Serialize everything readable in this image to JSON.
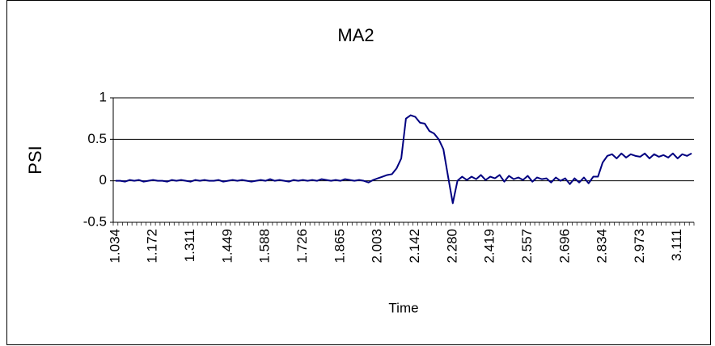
{
  "chart_data": {
    "type": "line",
    "title": "MA2",
    "x_label": "Time",
    "y_label": "PSI",
    "categories": [
      "1.034",
      null,
      null,
      null,
      null,
      null,
      null,
      null,
      "1.172",
      null,
      null,
      null,
      null,
      null,
      null,
      null,
      "1.311",
      null,
      null,
      null,
      null,
      null,
      null,
      null,
      "1.449",
      null,
      null,
      null,
      null,
      null,
      null,
      null,
      "1.588",
      null,
      null,
      null,
      null,
      null,
      null,
      null,
      "1.726",
      null,
      null,
      null,
      null,
      null,
      null,
      null,
      "1.865",
      null,
      null,
      null,
      null,
      null,
      null,
      null,
      "2.003",
      null,
      null,
      null,
      null,
      null,
      null,
      null,
      "2.142",
      null,
      null,
      null,
      null,
      null,
      null,
      null,
      "2.280",
      null,
      null,
      null,
      null,
      null,
      null,
      null,
      "2.419",
      null,
      null,
      null,
      null,
      null,
      null,
      null,
      "2.557",
      null,
      null,
      null,
      null,
      null,
      null,
      null,
      "2.696",
      null,
      null,
      null,
      null,
      null,
      null,
      null,
      "2.834",
      null,
      null,
      null,
      null,
      null,
      null,
      null,
      "2.973",
      null,
      null,
      null,
      null,
      null,
      null,
      null,
      "3.111",
      null,
      null,
      null
    ],
    "series": [
      {
        "color": "#000080",
        "values": [
          0,
          0,
          -0.01,
          0.01,
          0,
          0.01,
          -0.01,
          0,
          0.01,
          0,
          0,
          -0.01,
          0.01,
          0,
          0.01,
          0,
          -0.01,
          0.01,
          0,
          0.01,
          0,
          0,
          0.01,
          -0.01,
          0,
          0.01,
          0,
          0.01,
          0,
          -0.01,
          0,
          0.01,
          0,
          0.02,
          0,
          0.01,
          0,
          -0.01,
          0.01,
          0,
          0.01,
          0,
          0.01,
          0,
          0.02,
          0.01,
          0,
          0.01,
          0,
          0.02,
          0.01,
          0,
          0.01,
          0,
          -0.02,
          0.01,
          0.03,
          0.05,
          0.07,
          0.08,
          0.15,
          0.27,
          0.75,
          0.79,
          0.77,
          0.7,
          0.69,
          0.6,
          0.57,
          0.5,
          0.38,
          0.05,
          -0.27,
          0,
          0.05,
          0.01,
          0.05,
          0.02,
          0.07,
          0.01,
          0.05,
          0.03,
          0.07,
          -0.01,
          0.06,
          0.02,
          0.04,
          0.01,
          0.06,
          -0.01,
          0.04,
          0.02,
          0.03,
          -0.02,
          0.04,
          0,
          0.03,
          -0.04,
          0.03,
          -0.02,
          0.04,
          -0.03,
          0.05,
          0.05,
          0.22,
          0.3,
          0.32,
          0.27,
          0.33,
          0.28,
          0.32,
          0.3,
          0.29,
          0.33,
          0.27,
          0.32,
          0.29,
          0.31,
          0.28,
          0.33,
          0.27,
          0.32,
          0.3,
          0.33
        ]
      }
    ],
    "ylim": [
      -0.5,
      1
    ],
    "yticks": [
      -0.5,
      0,
      0.5,
      1
    ],
    "grid": true
  }
}
